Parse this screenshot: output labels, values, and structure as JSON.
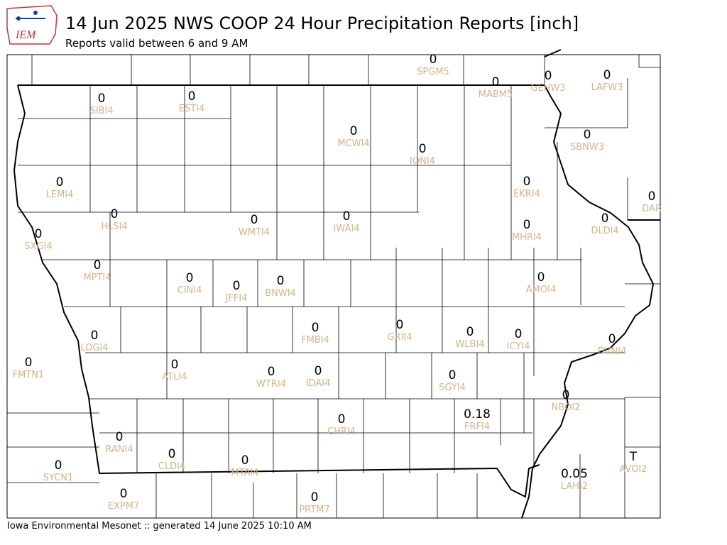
{
  "header": {
    "logo": "IEM",
    "title": "14 Jun 2025 NWS COOP 24 Hour Precipitation Reports [inch]",
    "subtitle": "Reports valid between 6 and 9 AM"
  },
  "stations": [
    {
      "id": "SPGM5",
      "value": "0"
    },
    {
      "id": "SIBI4",
      "value": "0"
    },
    {
      "id": "ESTI4",
      "value": "0"
    },
    {
      "id": "MABM5",
      "value": "0"
    },
    {
      "id": "GEHW3",
      "value": "0"
    },
    {
      "id": "LAFW3",
      "value": "0"
    },
    {
      "id": "MCWI4",
      "value": "0"
    },
    {
      "id": "IONI4",
      "value": "0"
    },
    {
      "id": "SBNW3",
      "value": "0"
    },
    {
      "id": "LEMI4",
      "value": "0"
    },
    {
      "id": "EKRI4",
      "value": "0"
    },
    {
      "id": "DAR",
      "value": "0"
    },
    {
      "id": "HLSI4",
      "value": "0"
    },
    {
      "id": "WMTI4",
      "value": "0"
    },
    {
      "id": "IWAI4",
      "value": "0"
    },
    {
      "id": "MHRI4",
      "value": "0"
    },
    {
      "id": "DLDI4",
      "value": "0"
    },
    {
      "id": "SXGI4",
      "value": "0"
    },
    {
      "id": "MPTI4",
      "value": "0"
    },
    {
      "id": "CINI4",
      "value": "0"
    },
    {
      "id": "JFFI4",
      "value": "0"
    },
    {
      "id": "BNWI4",
      "value": "0"
    },
    {
      "id": "AMOI4",
      "value": "0"
    },
    {
      "id": "FMBI4",
      "value": "0"
    },
    {
      "id": "GRII4",
      "value": "0"
    },
    {
      "id": "WLBI4",
      "value": "0"
    },
    {
      "id": "ICYI4",
      "value": "0"
    },
    {
      "id": "LOGI4",
      "value": "0"
    },
    {
      "id": "DVNI4",
      "value": "0"
    },
    {
      "id": "FMTN1",
      "value": "0"
    },
    {
      "id": "ATLI4",
      "value": "0"
    },
    {
      "id": "WTRI4",
      "value": "0"
    },
    {
      "id": "IDAI4",
      "value": "0"
    },
    {
      "id": "SGYI4",
      "value": "0"
    },
    {
      "id": "NBOI2",
      "value": "0"
    },
    {
      "id": "FRFI4",
      "value": "0.18"
    },
    {
      "id": "CHRI4",
      "value": "0"
    },
    {
      "id": "RANI4",
      "value": "0"
    },
    {
      "id": "CLDI4",
      "value": "0"
    },
    {
      "id": "MTAI4",
      "value": "0"
    },
    {
      "id": "SYCN1",
      "value": "0"
    },
    {
      "id": "AVOI2",
      "value": "T"
    },
    {
      "id": "LAHI2",
      "value": "0.05"
    },
    {
      "id": "EXPM7",
      "value": "0"
    },
    {
      "id": "PRTM7",
      "value": "0"
    }
  ],
  "footer": "Iowa Environmental Mesonet :: generated 14 June 2025 10:10 AM"
}
